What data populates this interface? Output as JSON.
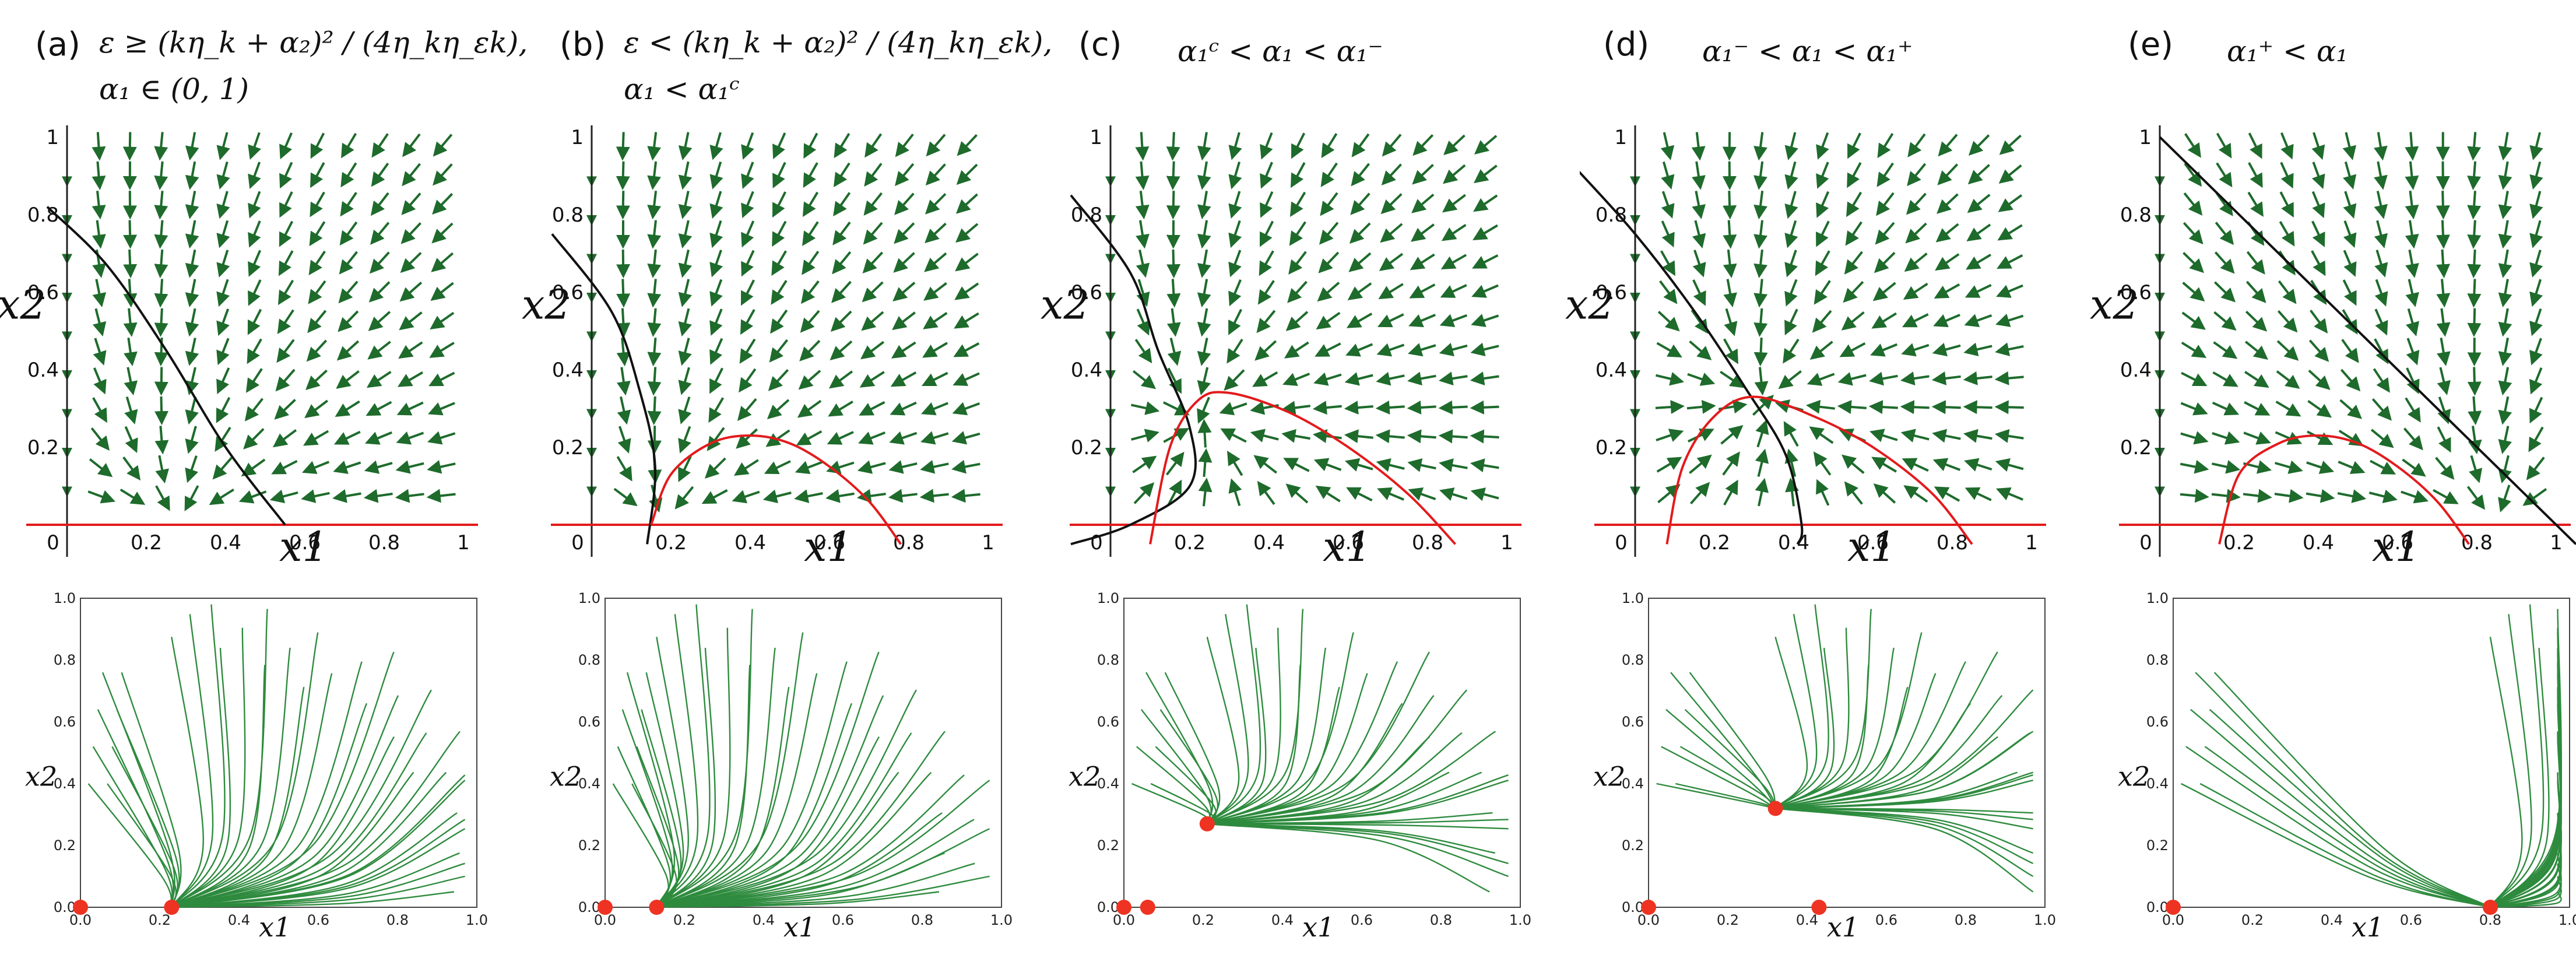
{
  "figure": {
    "axis_labels": {
      "x": "x1",
      "y": "x2"
    },
    "top_ticks": [
      "0",
      "0.2",
      "0.4",
      "0.6",
      "0.8",
      "1"
    ],
    "bottom_ticks": [
      "0.0",
      "0.2",
      "0.4",
      "0.6",
      "0.8",
      "1.0"
    ],
    "colors": {
      "arrow": "#1e6b2c",
      "stream": "#2e8b3e",
      "nullcline_red": "#e31a1c",
      "nullcline_black": "#111111",
      "fixed_point": "#ee3322"
    }
  },
  "chart_data": [
    {
      "type": "vector-field",
      "panel": "(a)",
      "condition_line1": "ε ≥ (kη_k + α₂)² / (4η_kη_εk),",
      "condition_line2": "α₁ ∈ (0, 1)",
      "xlim": [
        0,
        1
      ],
      "ylim": [
        0,
        1
      ],
      "xlabel": "x1",
      "ylabel": "x2",
      "black_nullcline": [
        [
          -0.05,
          0.82
        ],
        [
          0.1,
          0.67
        ],
        [
          0.25,
          0.45
        ],
        [
          0.4,
          0.2
        ],
        [
          0.55,
          0.0
        ]
      ],
      "red_nullcline": [],
      "fixed_points": [
        [
          0.0,
          0.0
        ],
        [
          0.23,
          0.0
        ]
      ],
      "streamline_sink": [
        0.23,
        0.0
      ]
    },
    {
      "type": "vector-field",
      "panel": "(b)",
      "condition_line1": "ε < (kη_k + α₂)² / (4η_kη_εk),",
      "condition_line2": "α₁ < α₁ᶜ",
      "xlim": [
        0,
        1
      ],
      "ylim": [
        0,
        1
      ],
      "xlabel": "x1",
      "ylabel": "x2",
      "black_nullcline": [
        [
          -0.1,
          0.75
        ],
        [
          0.05,
          0.55
        ],
        [
          0.12,
          0.35
        ],
        [
          0.16,
          0.15
        ],
        [
          0.14,
          -0.05
        ]
      ],
      "red_nullcline": [
        [
          0.15,
          0.0
        ],
        [
          0.2,
          0.13
        ],
        [
          0.3,
          0.21
        ],
        [
          0.4,
          0.23
        ],
        [
          0.5,
          0.21
        ],
        [
          0.6,
          0.15
        ],
        [
          0.7,
          0.06
        ],
        [
          0.78,
          -0.05
        ]
      ],
      "fixed_points": [
        [
          0.0,
          0.0
        ],
        [
          0.13,
          0.0
        ]
      ],
      "streamline_sink": [
        0.13,
        0.0
      ]
    },
    {
      "type": "vector-field",
      "panel": "(c)",
      "condition_line1": "α₁ᶜ < α₁ < α₁⁻",
      "condition_line2": "",
      "xlim": [
        0,
        1
      ],
      "ylim": [
        0,
        1
      ],
      "xlabel": "x1",
      "ylabel": "x2",
      "black_nullcline": [
        [
          -0.1,
          0.85
        ],
        [
          0.05,
          0.65
        ],
        [
          0.12,
          0.45
        ],
        [
          0.2,
          0.25
        ],
        [
          0.2,
          0.1
        ],
        [
          0.05,
          0.0
        ],
        [
          -0.1,
          -0.05
        ]
      ],
      "red_nullcline": [
        [
          0.1,
          -0.05
        ],
        [
          0.15,
          0.2
        ],
        [
          0.22,
          0.32
        ],
        [
          0.3,
          0.34
        ],
        [
          0.45,
          0.29
        ],
        [
          0.6,
          0.2
        ],
        [
          0.75,
          0.08
        ],
        [
          0.87,
          -0.05
        ]
      ],
      "fixed_points": [
        [
          0.0,
          0.0
        ],
        [
          0.06,
          0.0
        ],
        [
          0.21,
          0.27
        ]
      ],
      "streamline_sink": [
        0.21,
        0.27
      ]
    },
    {
      "type": "vector-field",
      "panel": "(d)",
      "condition_line1": "α₁⁻ < α₁ < α₁⁺",
      "condition_line2": "",
      "xlim": [
        0,
        1
      ],
      "ylim": [
        0,
        1
      ],
      "xlabel": "x1",
      "ylabel": "x2",
      "black_nullcline": [
        [
          -0.15,
          0.92
        ],
        [
          0.0,
          0.75
        ],
        [
          0.15,
          0.55
        ],
        [
          0.28,
          0.35
        ],
        [
          0.38,
          0.18
        ],
        [
          0.42,
          0.0
        ],
        [
          0.41,
          -0.05
        ]
      ],
      "red_nullcline": [
        [
          0.08,
          -0.05
        ],
        [
          0.12,
          0.15
        ],
        [
          0.2,
          0.28
        ],
        [
          0.3,
          0.33
        ],
        [
          0.45,
          0.28
        ],
        [
          0.6,
          0.2
        ],
        [
          0.75,
          0.08
        ],
        [
          0.85,
          -0.05
        ]
      ],
      "fixed_points": [
        [
          0.0,
          0.0
        ],
        [
          0.32,
          0.32
        ],
        [
          0.43,
          0.0
        ]
      ],
      "streamline_sink": [
        0.32,
        0.32
      ]
    },
    {
      "type": "vector-field",
      "panel": "(e)",
      "condition_line1": "α₁⁺ < α₁",
      "condition_line2": "",
      "xlim": [
        0,
        1
      ],
      "ylim": [
        0,
        1
      ],
      "xlabel": "x1",
      "ylabel": "x2",
      "black_nullcline": [
        [
          0.0,
          1.0
        ],
        [
          0.25,
          0.75
        ],
        [
          0.5,
          0.5
        ],
        [
          0.75,
          0.25
        ],
        [
          1.0,
          0.0
        ],
        [
          1.05,
          -0.05
        ]
      ],
      "red_nullcline": [
        [
          0.15,
          -0.05
        ],
        [
          0.2,
          0.13
        ],
        [
          0.3,
          0.21
        ],
        [
          0.4,
          0.23
        ],
        [
          0.5,
          0.21
        ],
        [
          0.6,
          0.15
        ],
        [
          0.7,
          0.06
        ],
        [
          0.78,
          -0.05
        ]
      ],
      "fixed_points": [
        [
          0.0,
          0.0
        ],
        [
          0.8,
          0.0
        ]
      ],
      "streamline_sink": [
        0.8,
        0.0
      ]
    }
  ]
}
